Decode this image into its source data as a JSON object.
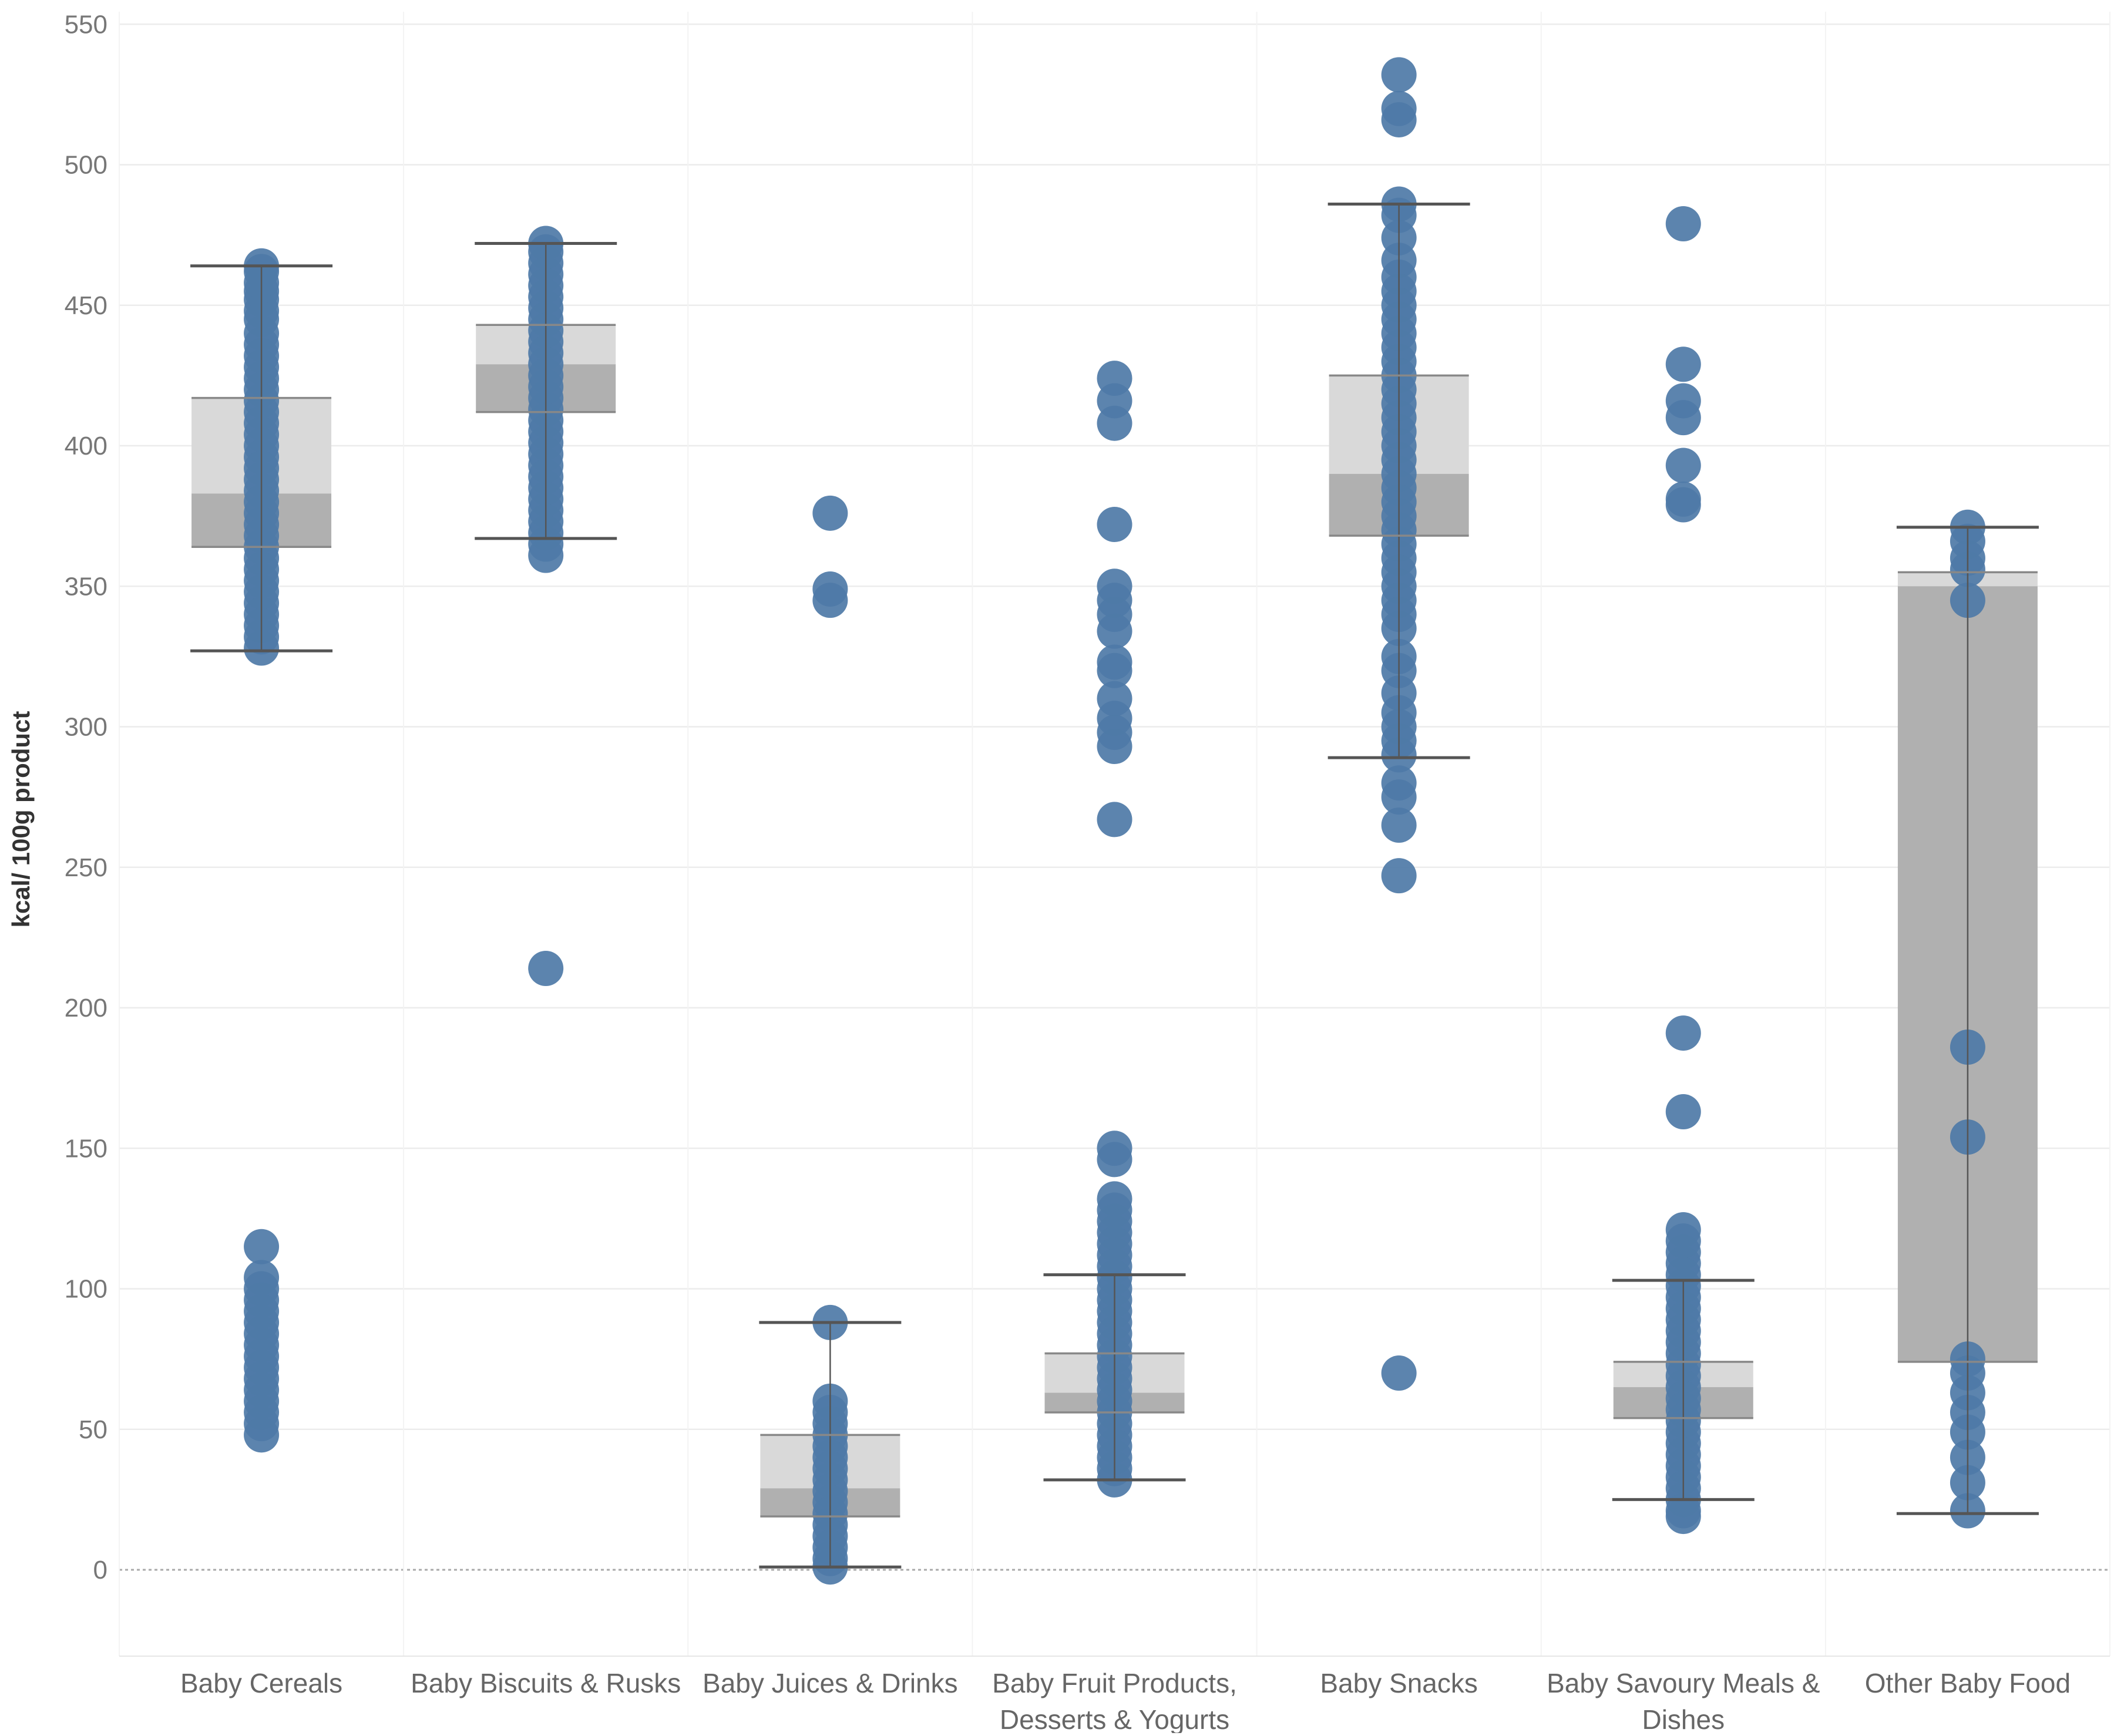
{
  "chart_data": {
    "type": "boxplot",
    "title": "",
    "xlabel": "",
    "ylabel": "kcal/ 100g product",
    "ylim": [
      -30,
      550
    ],
    "yticks": [
      0,
      50,
      100,
      150,
      200,
      250,
      300,
      350,
      400,
      450,
      500,
      550
    ],
    "grid": true,
    "colors": {
      "points": "#4e79a7",
      "box_upper": "#d9d9d9",
      "box_lower": "#b0b0b0",
      "whisker": "#555555",
      "grid": "#ececec",
      "zero_line": "#aaaaaa",
      "tick_text": "#777777",
      "label_text": "#666666"
    },
    "categories": [
      {
        "label": [
          "Baby Cereals"
        ],
        "box": {
          "whisker_low": 327,
          "q1": 364,
          "median": 383,
          "q3": 417,
          "whisker_high": 464
        },
        "points": [
          464,
          462,
          458,
          455,
          452,
          448,
          445,
          440,
          436,
          432,
          428,
          424,
          420,
          416,
          412,
          408,
          404,
          400,
          396,
          392,
          388,
          384,
          380,
          376,
          372,
          368,
          364,
          360,
          356,
          352,
          348,
          344,
          340,
          336,
          332,
          328,
          115,
          104,
          100,
          96,
          92,
          88,
          84,
          80,
          76,
          72,
          68,
          64,
          60,
          56,
          52,
          48
        ]
      },
      {
        "label": [
          "Baby Biscuits & Rusks"
        ],
        "box": {
          "whisker_low": 367,
          "q1": 412,
          "median": 429,
          "q3": 443,
          "whisker_high": 472
        },
        "points": [
          472,
          469,
          465,
          461,
          457,
          453,
          449,
          445,
          441,
          437,
          433,
          429,
          425,
          421,
          417,
          413,
          409,
          405,
          401,
          397,
          393,
          389,
          385,
          381,
          377,
          373,
          369,
          365,
          361,
          214
        ]
      },
      {
        "label": [
          "Baby Juices & Drinks"
        ],
        "box": {
          "whisker_low": 1,
          "q1": 19,
          "median": 29,
          "q3": 48,
          "whisker_high": 88
        },
        "points": [
          376,
          349,
          345,
          88,
          60,
          56,
          52,
          48,
          44,
          40,
          36,
          32,
          28,
          24,
          20,
          16,
          12,
          8,
          4,
          1
        ]
      },
      {
        "label": [
          "Baby Fruit Products,",
          "Desserts & Yogurts"
        ],
        "box": {
          "whisker_low": 32,
          "q1": 56,
          "median": 63,
          "q3": 77,
          "whisker_high": 105
        },
        "points": [
          424,
          416,
          408,
          372,
          350,
          345,
          340,
          334,
          323,
          320,
          310,
          303,
          298,
          293,
          267,
          150,
          146,
          132,
          128,
          124,
          120,
          116,
          112,
          108,
          104,
          100,
          96,
          92,
          88,
          84,
          80,
          76,
          72,
          68,
          64,
          60,
          56,
          52,
          48,
          44,
          40,
          36,
          32
        ]
      },
      {
        "label": [
          "Baby Snacks"
        ],
        "box": {
          "whisker_low": 289,
          "q1": 368,
          "median": 390,
          "q3": 425,
          "whisker_high": 486
        },
        "points": [
          532,
          520,
          516,
          486,
          482,
          474,
          466,
          460,
          455,
          450,
          445,
          440,
          435,
          430,
          425,
          420,
          415,
          410,
          405,
          400,
          395,
          390,
          385,
          380,
          375,
          370,
          365,
          360,
          355,
          350,
          345,
          340,
          335,
          325,
          320,
          312,
          305,
          300,
          295,
          290,
          280,
          275,
          265,
          247,
          70
        ]
      },
      {
        "label": [
          "Baby Savoury Meals &",
          "Dishes"
        ],
        "box": {
          "whisker_low": 25,
          "q1": 54,
          "median": 65,
          "q3": 74,
          "whisker_high": 103
        },
        "points": [
          479,
          429,
          416,
          410,
          393,
          381,
          379,
          191,
          163,
          121,
          117,
          113,
          109,
          105,
          101,
          97,
          93,
          89,
          85,
          81,
          77,
          73,
          69,
          65,
          61,
          57,
          53,
          49,
          45,
          41,
          37,
          33,
          29,
          25,
          21,
          19
        ]
      },
      {
        "label": [
          "Other Baby Food"
        ],
        "box": {
          "whisker_low": 20,
          "q1": 74,
          "median": 350,
          "q3": 355,
          "whisker_high": 371
        },
        "points": [
          371,
          366,
          360,
          356,
          345,
          186,
          154,
          75,
          70,
          63,
          56,
          49,
          40,
          31,
          21
        ]
      }
    ]
  }
}
